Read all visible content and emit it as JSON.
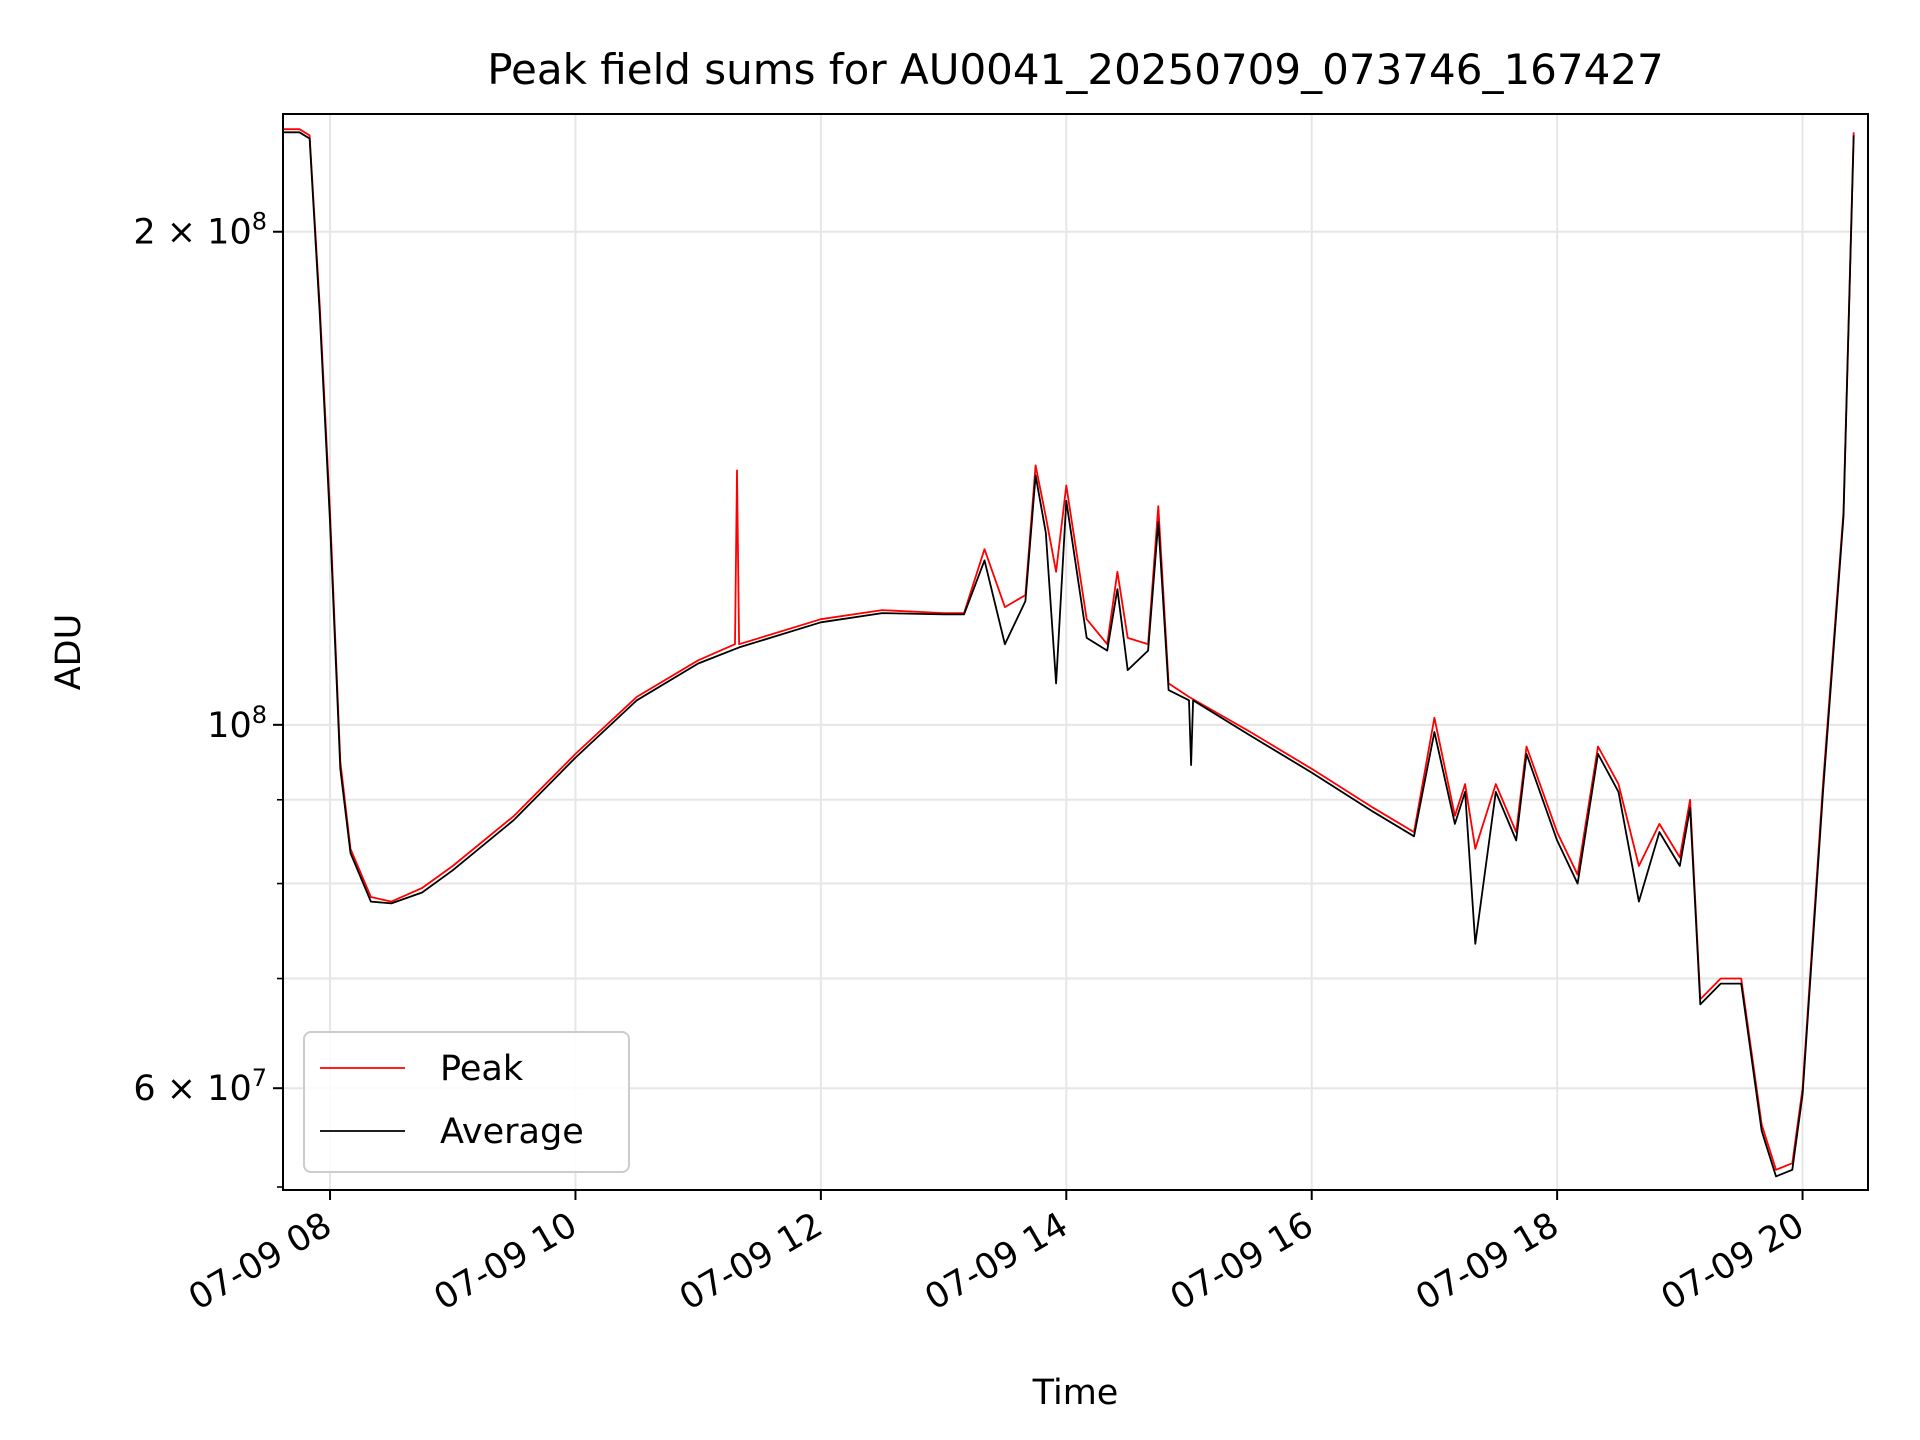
{
  "chart_data": {
    "type": "line",
    "title": "Peak field sums for AU0041_20250709_073746_167427",
    "xlabel": "Time",
    "ylabel": "ADU",
    "y_scale": "log",
    "grid": true,
    "legend_position": "lower-left",
    "xlim": [
      "2025-07-09 07:37",
      "2025-07-09 20:32"
    ],
    "ylim": [
      52000000,
      236000000
    ],
    "x_ticks": [
      {
        "value": "2025-07-09 08:00",
        "label": "07-09 08"
      },
      {
        "value": "2025-07-09 10:00",
        "label": "07-09 10"
      },
      {
        "value": "2025-07-09 12:00",
        "label": "07-09 12"
      },
      {
        "value": "2025-07-09 14:00",
        "label": "07-09 14"
      },
      {
        "value": "2025-07-09 16:00",
        "label": "07-09 16"
      },
      {
        "value": "2025-07-09 18:00",
        "label": "07-09 18"
      },
      {
        "value": "2025-07-09 20:00",
        "label": "07-09 20"
      }
    ],
    "y_ticks_major": [
      {
        "value": 200000000,
        "base": "2 × 10",
        "exp": "8"
      },
      {
        "value": 100000000,
        "base": "10",
        "exp": "8"
      },
      {
        "value": 60000000,
        "base": "6 × 10",
        "exp": "7"
      }
    ],
    "y_ticks_minor": [
      90000000,
      80000000,
      70000000
    ],
    "colors": {
      "Peak": "#ff0000",
      "Average": "#000000"
    },
    "series": [
      {
        "name": "Peak",
        "color": "#ff0000",
        "points": [
          [
            "2025-07-09 07:37",
            231000000
          ],
          [
            "2025-07-09 07:45",
            231000000
          ],
          [
            "2025-07-09 07:50",
            229000000
          ],
          [
            "2025-07-09 07:55",
            180000000
          ],
          [
            "2025-07-09 08:00",
            135000000
          ],
          [
            "2025-07-09 08:05",
            95000000
          ],
          [
            "2025-07-09 08:10",
            84000000
          ],
          [
            "2025-07-09 08:20",
            78500000
          ],
          [
            "2025-07-09 08:30",
            78000000
          ],
          [
            "2025-07-09 08:45",
            79500000
          ],
          [
            "2025-07-09 09:00",
            82000000
          ],
          [
            "2025-07-09 09:30",
            88000000
          ],
          [
            "2025-07-09 10:00",
            96000000
          ],
          [
            "2025-07-09 10:30",
            104000000
          ],
          [
            "2025-07-09 11:00",
            109500000
          ],
          [
            "2025-07-09 11:18",
            112000000
          ],
          [
            "2025-07-09 11:19",
            143000000
          ],
          [
            "2025-07-09 11:20",
            112000000
          ],
          [
            "2025-07-09 12:00",
            116000000
          ],
          [
            "2025-07-09 12:30",
            117500000
          ],
          [
            "2025-07-09 13:00",
            117000000
          ],
          [
            "2025-07-09 13:10",
            117000000
          ],
          [
            "2025-07-09 13:20",
            128000000
          ],
          [
            "2025-07-09 13:30",
            118000000
          ],
          [
            "2025-07-09 13:40",
            120000000
          ],
          [
            "2025-07-09 13:45",
            144000000
          ],
          [
            "2025-07-09 13:50",
            134000000
          ],
          [
            "2025-07-09 13:55",
            124000000
          ],
          [
            "2025-07-09 14:00",
            140000000
          ],
          [
            "2025-07-09 14:10",
            116000000
          ],
          [
            "2025-07-09 14:20",
            112000000
          ],
          [
            "2025-07-09 14:25",
            124000000
          ],
          [
            "2025-07-09 14:30",
            113000000
          ],
          [
            "2025-07-09 14:40",
            112000000
          ],
          [
            "2025-07-09 14:45",
            136000000
          ],
          [
            "2025-07-09 14:50",
            106000000
          ],
          [
            "2025-07-09 15:00",
            104000000
          ],
          [
            "2025-07-09 15:30",
            99000000
          ],
          [
            "2025-07-09 16:00",
            94000000
          ],
          [
            "2025-07-09 16:30",
            89000000
          ],
          [
            "2025-07-09 16:50",
            86000000
          ],
          [
            "2025-07-09 17:00",
            101000000
          ],
          [
            "2025-07-09 17:10",
            88000000
          ],
          [
            "2025-07-09 17:15",
            92000000
          ],
          [
            "2025-07-09 17:20",
            84000000
          ],
          [
            "2025-07-09 17:30",
            92000000
          ],
          [
            "2025-07-09 17:40",
            86000000
          ],
          [
            "2025-07-09 17:45",
            97000000
          ],
          [
            "2025-07-09 18:00",
            86000000
          ],
          [
            "2025-07-09 18:10",
            81000000
          ],
          [
            "2025-07-09 18:20",
            97000000
          ],
          [
            "2025-07-09 18:30",
            92000000
          ],
          [
            "2025-07-09 18:40",
            82000000
          ],
          [
            "2025-07-09 18:50",
            87000000
          ],
          [
            "2025-07-09 19:00",
            83000000
          ],
          [
            "2025-07-09 19:05",
            90000000
          ],
          [
            "2025-07-09 19:10",
            68000000
          ],
          [
            "2025-07-09 19:20",
            70000000
          ],
          [
            "2025-07-09 19:30",
            70000000
          ],
          [
            "2025-07-09 19:40",
            57000000
          ],
          [
            "2025-07-09 19:47",
            53500000
          ],
          [
            "2025-07-09 19:55",
            54000000
          ],
          [
            "2025-07-09 20:00",
            60000000
          ],
          [
            "2025-07-09 20:10",
            92000000
          ],
          [
            "2025-07-09 20:20",
            135000000
          ],
          [
            "2025-07-09 20:25",
            230000000
          ]
        ]
      },
      {
        "name": "Average",
        "color": "#000000",
        "points": [
          [
            "2025-07-09 07:37",
            230000000
          ],
          [
            "2025-07-09 07:45",
            230000000
          ],
          [
            "2025-07-09 07:50",
            228000000
          ],
          [
            "2025-07-09 07:55",
            178000000
          ],
          [
            "2025-07-09 08:00",
            133000000
          ],
          [
            "2025-07-09 08:05",
            94000000
          ],
          [
            "2025-07-09 08:10",
            83500000
          ],
          [
            "2025-07-09 08:20",
            78000000
          ],
          [
            "2025-07-09 08:30",
            77800000
          ],
          [
            "2025-07-09 08:45",
            79000000
          ],
          [
            "2025-07-09 09:00",
            81500000
          ],
          [
            "2025-07-09 09:30",
            87500000
          ],
          [
            "2025-07-09 10:00",
            95500000
          ],
          [
            "2025-07-09 10:30",
            103500000
          ],
          [
            "2025-07-09 11:00",
            109000000
          ],
          [
            "2025-07-09 11:20",
            111500000
          ],
          [
            "2025-07-09 12:00",
            115500000
          ],
          [
            "2025-07-09 12:30",
            117000000
          ],
          [
            "2025-07-09 13:00",
            116800000
          ],
          [
            "2025-07-09 13:10",
            116800000
          ],
          [
            "2025-07-09 13:20",
            126000000
          ],
          [
            "2025-07-09 13:30",
            112000000
          ],
          [
            "2025-07-09 13:40",
            119000000
          ],
          [
            "2025-07-09 13:45",
            142000000
          ],
          [
            "2025-07-09 13:50",
            131000000
          ],
          [
            "2025-07-09 13:55",
            106000000
          ],
          [
            "2025-07-09 14:00",
            137000000
          ],
          [
            "2025-07-09 14:10",
            113000000
          ],
          [
            "2025-07-09 14:20",
            111000000
          ],
          [
            "2025-07-09 14:25",
            121000000
          ],
          [
            "2025-07-09 14:30",
            108000000
          ],
          [
            "2025-07-09 14:40",
            111000000
          ],
          [
            "2025-07-09 14:45",
            133000000
          ],
          [
            "2025-07-09 14:50",
            105000000
          ],
          [
            "2025-07-09 15:00",
            103500000
          ],
          [
            "2025-07-09 15:01",
            94500000
          ],
          [
            "2025-07-09 15:02",
            103500000
          ],
          [
            "2025-07-09 15:30",
            98500000
          ],
          [
            "2025-07-09 16:00",
            93500000
          ],
          [
            "2025-07-09 16:30",
            88500000
          ],
          [
            "2025-07-09 16:50",
            85500000
          ],
          [
            "2025-07-09 17:00",
            99000000
          ],
          [
            "2025-07-09 17:10",
            87000000
          ],
          [
            "2025-07-09 17:15",
            91000000
          ],
          [
            "2025-07-09 17:20",
            73500000
          ],
          [
            "2025-07-09 17:30",
            91000000
          ],
          [
            "2025-07-09 17:40",
            85000000
          ],
          [
            "2025-07-09 17:45",
            96000000
          ],
          [
            "2025-07-09 18:00",
            85000000
          ],
          [
            "2025-07-09 18:10",
            80000000
          ],
          [
            "2025-07-09 18:20",
            96000000
          ],
          [
            "2025-07-09 18:30",
            91000000
          ],
          [
            "2025-07-09 18:40",
            78000000
          ],
          [
            "2025-07-09 18:50",
            86000000
          ],
          [
            "2025-07-09 19:00",
            82000000
          ],
          [
            "2025-07-09 19:05",
            89000000
          ],
          [
            "2025-07-09 19:10",
            67500000
          ],
          [
            "2025-07-09 19:20",
            69500000
          ],
          [
            "2025-07-09 19:30",
            69500000
          ],
          [
            "2025-07-09 19:40",
            56500000
          ],
          [
            "2025-07-09 19:47",
            53000000
          ],
          [
            "2025-07-09 19:55",
            53500000
          ],
          [
            "2025-07-09 20:00",
            59500000
          ],
          [
            "2025-07-09 20:10",
            91000000
          ],
          [
            "2025-07-09 20:20",
            134000000
          ],
          [
            "2025-07-09 20:25",
            229000000
          ]
        ]
      }
    ]
  }
}
